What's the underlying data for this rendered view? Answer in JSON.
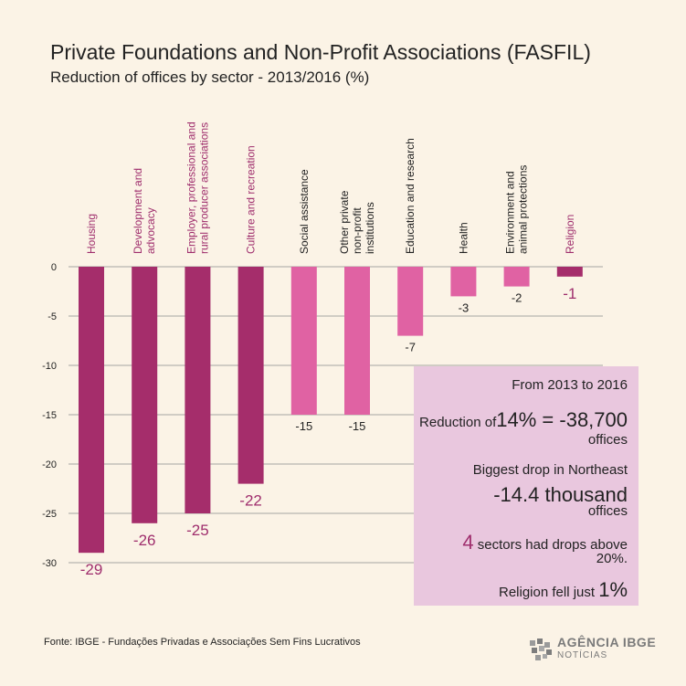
{
  "header": {
    "title": "Private Foundations and Non-Profit Associations (FASFIL)",
    "subtitle": "Reduction of offices by sector  - 2013/2016 (%)"
  },
  "chart_data": {
    "type": "bar",
    "title": "Private Foundations and Non-Profit Associations (FASFIL)",
    "subtitle": "Reduction of offices by sector  - 2013/2016 (%)",
    "categories": [
      [
        "Housing"
      ],
      [
        "Development and",
        "advocacy"
      ],
      [
        "Employer, professional and",
        "rural producer associations"
      ],
      [
        "Culture and recreation"
      ],
      [
        "Social assistance"
      ],
      [
        "Other private",
        "non-profit",
        "institutions"
      ],
      [
        "Education and research"
      ],
      [
        "Health"
      ],
      [
        "Environment and",
        "animal protections"
      ],
      [
        "Religion"
      ]
    ],
    "values": [
      -29,
      -26,
      -25,
      -22,
      -15,
      -15,
      -7,
      -3,
      -2,
      -1
    ],
    "value_labels": [
      "-29",
      "-26",
      "-25",
      "-22",
      "-15",
      "-15",
      "-7",
      "-3",
      "-2",
      "-1"
    ],
    "highlight": [
      true,
      true,
      true,
      true,
      false,
      false,
      false,
      false,
      false,
      true
    ],
    "ylim": [
      -30,
      0
    ],
    "yticks": [
      0,
      -5,
      -10,
      -15,
      -20,
      -25,
      -30
    ],
    "ytick_labels": [
      "0",
      "-5",
      "-10",
      "-15",
      "-20",
      "-25",
      "-30"
    ],
    "grid": true,
    "colors": {
      "dark": "#a52d6b",
      "light": "#e062a3",
      "label_dark": "#9f2e6d",
      "label_light": "#222222",
      "grid": "#8a8a8a"
    }
  },
  "infobox": {
    "period": "From 2013 to 2016",
    "reduction_prefix": "Reduction of",
    "reduction_pct": "14%",
    "reduction_value": " = -38,700",
    "reduction_unit": "offices",
    "drop_label": "Biggest drop in Northeast",
    "drop_value": "-14.4 thousand",
    "drop_unit": "offices",
    "sectors_count": "4",
    "sectors_text": " sectors had drops above",
    "sectors_threshold": "20%.",
    "religion_text": "Religion fell just ",
    "religion_value": "1%"
  },
  "footer": {
    "source": "Fonte: IBGE - Fundações Privadas e Associações Sem Fins Lucrativos",
    "logo_brand": "AGÊNCIA IBGE",
    "logo_sub": "NOTÍCIAS"
  }
}
